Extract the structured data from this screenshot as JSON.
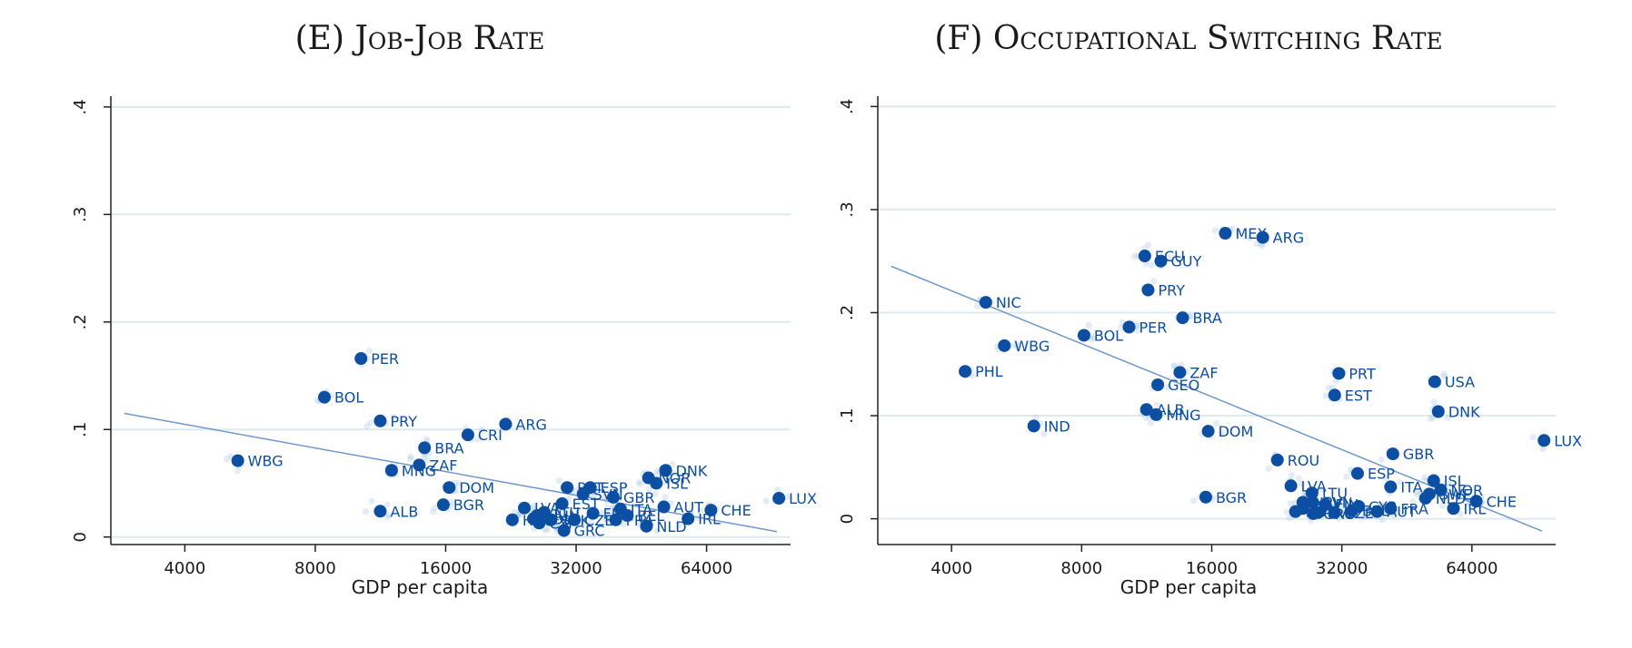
{
  "chart_data": [
    {
      "type": "scatter",
      "title": "(E) Job-Job Rate",
      "xlabel": "GDP per capita",
      "ylabel": "",
      "x_scale": "log",
      "xlim": [
        2700,
        100000
      ],
      "ylim": [
        -0.007,
        0.41
      ],
      "x_ticks": [
        4000,
        8000,
        16000,
        32000,
        64000
      ],
      "x_tick_labels": [
        "4000",
        "8000",
        "16000",
        "32000",
        "64000"
      ],
      "y_ticks": [
        0,
        0.1,
        0.2,
        0.3,
        0.4
      ],
      "y_tick_labels": [
        "0",
        ".1",
        ".2",
        ".3",
        ".4"
      ],
      "grid": true,
      "legend": "none",
      "fit_line": {
        "x": [
          2900,
          93000
        ],
        "y": [
          0.115,
          0.005
        ]
      },
      "points": [
        {
          "label": "PER",
          "x": 10200,
          "y": 0.166
        },
        {
          "label": "BOL",
          "x": 8400,
          "y": 0.13
        },
        {
          "label": "PRY",
          "x": 11300,
          "y": 0.108
        },
        {
          "label": "ARG",
          "x": 22000,
          "y": 0.105
        },
        {
          "label": "CRI",
          "x": 18000,
          "y": 0.095
        },
        {
          "label": "BRA",
          "x": 14300,
          "y": 0.083
        },
        {
          "label": "WBG",
          "x": 5300,
          "y": 0.071
        },
        {
          "label": "ZAF",
          "x": 13900,
          "y": 0.067
        },
        {
          "label": "MNG",
          "x": 12000,
          "y": 0.062
        },
        {
          "label": "DNK",
          "x": 51500,
          "y": 0.062
        },
        {
          "label": "NOR",
          "x": 47000,
          "y": 0.055
        },
        {
          "label": "ISL",
          "x": 49000,
          "y": 0.05
        },
        {
          "label": "DOM",
          "x": 16300,
          "y": 0.046
        },
        {
          "label": "PRT",
          "x": 30500,
          "y": 0.046
        },
        {
          "label": "ESP",
          "x": 34500,
          "y": 0.046
        },
        {
          "label": "SVN",
          "x": 33200,
          "y": 0.04
        },
        {
          "label": "GBR",
          "x": 39000,
          "y": 0.037
        },
        {
          "label": "LUX",
          "x": 94000,
          "y": 0.036
        },
        {
          "label": "EST",
          "x": 29700,
          "y": 0.031
        },
        {
          "label": "BGR",
          "x": 15800,
          "y": 0.03
        },
        {
          "label": "AUT",
          "x": 51000,
          "y": 0.028
        },
        {
          "label": "LVA",
          "x": 24300,
          "y": 0.027
        },
        {
          "label": "ITA",
          "x": 40500,
          "y": 0.026
        },
        {
          "label": "CHE",
          "x": 65500,
          "y": 0.025
        },
        {
          "label": "ALB",
          "x": 11300,
          "y": 0.024
        },
        {
          "label": "LTU",
          "x": 27000,
          "y": 0.023
        },
        {
          "label": "FIN",
          "x": 35000,
          "y": 0.022
        },
        {
          "label": "HUN",
          "x": 26000,
          "y": 0.02
        },
        {
          "label": "BEL",
          "x": 42000,
          "y": 0.02
        },
        {
          "label": "POL",
          "x": 25500,
          "y": 0.017
        },
        {
          "label": "SVK",
          "x": 28000,
          "y": 0.016
        },
        {
          "label": "CZE",
          "x": 31700,
          "y": 0.016
        },
        {
          "label": "FRA",
          "x": 39500,
          "y": 0.016
        },
        {
          "label": "IRL",
          "x": 58000,
          "y": 0.017
        },
        {
          "label": "HRV",
          "x": 22800,
          "y": 0.016
        },
        {
          "label": "CYP",
          "x": 26300,
          "y": 0.013
        },
        {
          "label": "NLD",
          "x": 46500,
          "y": 0.01
        },
        {
          "label": "GRC",
          "x": 30000,
          "y": 0.006
        }
      ]
    },
    {
      "type": "scatter",
      "title": "(F) Occupational Switching Rate",
      "xlabel": "GDP per capita",
      "ylabel": "",
      "x_scale": "log",
      "xlim": [
        2700,
        100000
      ],
      "ylim": [
        -0.025,
        0.41
      ],
      "x_ticks": [
        4000,
        8000,
        16000,
        32000,
        64000
      ],
      "x_tick_labels": [
        "4000",
        "8000",
        "16000",
        "32000",
        "64000"
      ],
      "y_ticks": [
        0,
        0.1,
        0.2,
        0.3,
        0.4
      ],
      "y_tick_labels": [
        "0",
        ".1",
        ".2",
        ".3",
        ".4"
      ],
      "grid": true,
      "legend": "none",
      "fit_line": {
        "x": [
          2900,
          93000
        ],
        "y": [
          0.245,
          -0.012
        ]
      },
      "points": [
        {
          "label": "MEX",
          "x": 17200,
          "y": 0.277
        },
        {
          "label": "ARG",
          "x": 21000,
          "y": 0.273
        },
        {
          "label": "ECU",
          "x": 11200,
          "y": 0.255
        },
        {
          "label": "GUY",
          "x": 12200,
          "y": 0.25
        },
        {
          "label": "PRY",
          "x": 11400,
          "y": 0.222
        },
        {
          "label": "NIC",
          "x": 4800,
          "y": 0.21
        },
        {
          "label": "BRA",
          "x": 13700,
          "y": 0.195
        },
        {
          "label": "PER",
          "x": 10300,
          "y": 0.186
        },
        {
          "label": "BOL",
          "x": 8100,
          "y": 0.178
        },
        {
          "label": "WBG",
          "x": 5300,
          "y": 0.168
        },
        {
          "label": "PHL",
          "x": 4300,
          "y": 0.143
        },
        {
          "label": "ZAF",
          "x": 13500,
          "y": 0.142
        },
        {
          "label": "PRT",
          "x": 31500,
          "y": 0.141
        },
        {
          "label": "USA",
          "x": 52500,
          "y": 0.133
        },
        {
          "label": "GEO",
          "x": 12000,
          "y": 0.13
        },
        {
          "label": "EST",
          "x": 30800,
          "y": 0.12
        },
        {
          "label": "ALB",
          "x": 11300,
          "y": 0.106
        },
        {
          "label": "DNK",
          "x": 53500,
          "y": 0.104
        },
        {
          "label": "MNG",
          "x": 11900,
          "y": 0.101
        },
        {
          "label": "IND",
          "x": 6200,
          "y": 0.09
        },
        {
          "label": "DOM",
          "x": 15700,
          "y": 0.085
        },
        {
          "label": "LUX",
          "x": 94000,
          "y": 0.076
        },
        {
          "label": "GBR",
          "x": 42000,
          "y": 0.063
        },
        {
          "label": "ROU",
          "x": 22700,
          "y": 0.057
        },
        {
          "label": "ESP",
          "x": 34800,
          "y": 0.044
        },
        {
          "label": "ISL",
          "x": 52200,
          "y": 0.037
        },
        {
          "label": "LVA",
          "x": 24400,
          "y": 0.032
        },
        {
          "label": "ITA",
          "x": 41500,
          "y": 0.031
        },
        {
          "label": "NOR",
          "x": 54200,
          "y": 0.028
        },
        {
          "label": "LTU",
          "x": 27300,
          "y": 0.025
        },
        {
          "label": "SWE",
          "x": 51000,
          "y": 0.024
        },
        {
          "label": "BGR",
          "x": 15500,
          "y": 0.021
        },
        {
          "label": "NLD",
          "x": 50000,
          "y": 0.02
        },
        {
          "label": "CHE",
          "x": 65500,
          "y": 0.017
        },
        {
          "label": "HRV",
          "x": 26000,
          "y": 0.016
        },
        {
          "label": "SVN",
          "x": 27400,
          "y": 0.016
        },
        {
          "label": "FIN",
          "x": 29300,
          "y": 0.014
        },
        {
          "label": "CYP",
          "x": 35000,
          "y": 0.012
        },
        {
          "label": "POL",
          "x": 26000,
          "y": 0.01
        },
        {
          "label": "IRL",
          "x": 58000,
          "y": 0.01
        },
        {
          "label": "FRA",
          "x": 41500,
          "y": 0.01
        },
        {
          "label": "BEL",
          "x": 33800,
          "y": 0.008
        },
        {
          "label": "HUN",
          "x": 25000,
          "y": 0.007
        },
        {
          "label": "AUT",
          "x": 38600,
          "y": 0.007
        },
        {
          "label": "SVK",
          "x": 28200,
          "y": 0.006
        },
        {
          "label": "CZE",
          "x": 30800,
          "y": 0.006
        },
        {
          "label": "GRC",
          "x": 27500,
          "y": 0.005
        }
      ]
    }
  ]
}
